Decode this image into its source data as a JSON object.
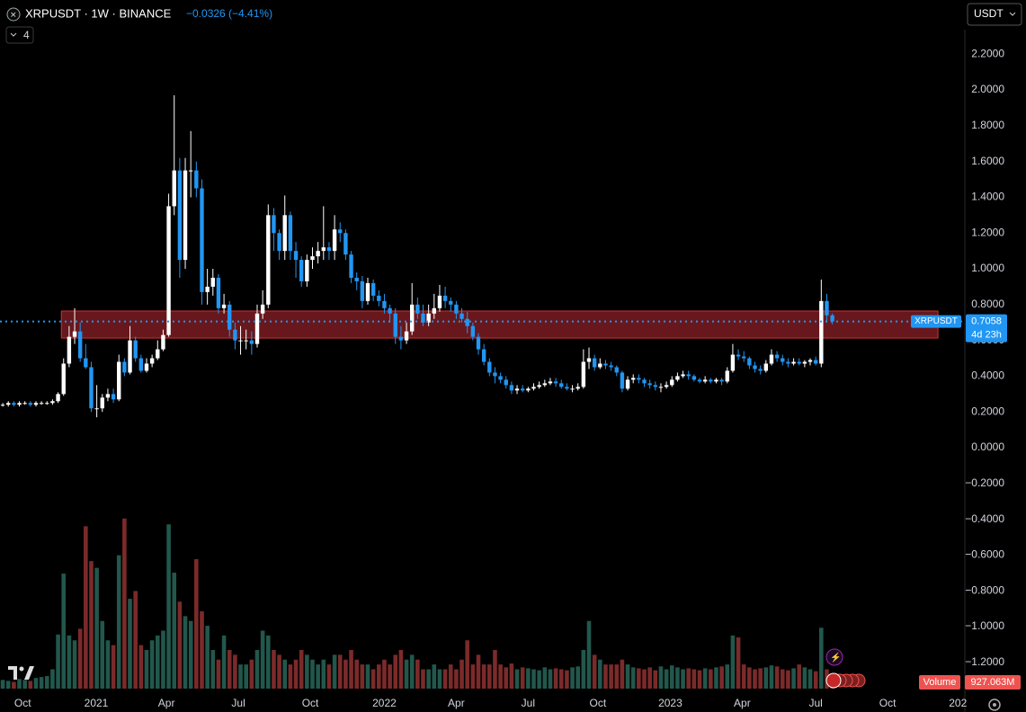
{
  "chart_data": {
    "type": "candlestick",
    "title": "XRPUSDT · 1W · BINANCE",
    "change_label": "−0.0326 (−4.41%)",
    "currency": "USDT",
    "indicator_count": 4,
    "open": [
      0.24,
      0.24,
      0.25,
      0.24,
      0.25,
      0.25,
      0.24,
      0.25,
      0.25,
      0.25,
      0.26,
      0.3,
      0.47,
      0.62,
      0.65,
      0.5,
      0.45,
      0.22,
      0.22,
      0.28,
      0.3,
      0.27,
      0.48,
      0.42,
      0.6,
      0.5,
      0.43,
      0.47,
      0.5,
      0.55,
      0.63,
      1.35,
      1.55,
      1.05,
      1.55,
      1.55,
      1.45,
      0.87,
      0.9,
      0.95,
      0.78,
      0.8,
      0.66,
      0.6,
      0.6,
      0.6,
      0.58,
      0.75,
      0.8,
      1.3,
      1.2,
      1.1,
      1.3,
      1.1,
      1.05,
      0.93,
      1.05,
      1.07,
      1.1,
      1.12,
      1.1,
      1.22,
      1.2,
      1.08,
      0.95,
      0.93,
      0.82,
      0.92,
      0.85,
      0.82,
      0.78,
      0.75,
      0.62,
      0.6,
      0.65,
      0.8,
      0.75,
      0.7,
      0.75,
      0.78,
      0.85,
      0.82,
      0.8,
      0.75,
      0.72,
      0.68,
      0.62,
      0.55,
      0.48,
      0.42,
      0.4,
      0.38,
      0.35,
      0.32,
      0.33,
      0.32,
      0.33,
      0.34,
      0.35,
      0.36,
      0.37,
      0.36,
      0.34,
      0.33,
      0.33,
      0.34,
      0.48,
      0.5,
      0.45,
      0.47,
      0.46,
      0.45,
      0.42,
      0.33,
      0.38,
      0.39,
      0.38,
      0.36,
      0.35,
      0.34,
      0.34,
      0.35,
      0.38,
      0.4,
      0.41,
      0.4,
      0.38,
      0.37,
      0.38,
      0.37,
      0.38,
      0.37,
      0.43,
      0.52,
      0.51,
      0.5,
      0.46,
      0.44,
      0.43,
      0.47,
      0.52,
      0.5,
      0.48,
      0.47,
      0.48,
      0.47,
      0.48,
      0.49,
      0.47,
      0.82,
      0.74
    ],
    "high": [
      0.25,
      0.26,
      0.26,
      0.26,
      0.26,
      0.26,
      0.26,
      0.26,
      0.26,
      0.27,
      0.31,
      0.5,
      0.68,
      0.78,
      0.7,
      0.58,
      0.48,
      0.35,
      0.3,
      0.33,
      0.33,
      0.52,
      0.5,
      0.68,
      0.62,
      0.52,
      0.5,
      0.52,
      0.6,
      0.66,
      1.42,
      1.97,
      1.62,
      1.62,
      1.77,
      1.6,
      1.5,
      1.0,
      1.0,
      0.97,
      0.86,
      0.82,
      0.7,
      0.68,
      0.66,
      0.65,
      0.8,
      0.88,
      1.36,
      1.34,
      1.22,
      1.41,
      1.32,
      1.15,
      1.07,
      1.08,
      1.12,
      1.15,
      1.35,
      1.15,
      1.3,
      1.26,
      1.22,
      1.1,
      0.98,
      0.96,
      0.95,
      0.94,
      0.88,
      0.86,
      0.8,
      0.78,
      0.68,
      0.7,
      0.92,
      0.84,
      0.8,
      0.8,
      0.86,
      0.91,
      0.9,
      0.84,
      0.82,
      0.78,
      0.76,
      0.7,
      0.64,
      0.58,
      0.5,
      0.45,
      0.42,
      0.4,
      0.37,
      0.35,
      0.35,
      0.34,
      0.36,
      0.37,
      0.38,
      0.39,
      0.39,
      0.38,
      0.36,
      0.35,
      0.36,
      0.55,
      0.56,
      0.52,
      0.5,
      0.49,
      0.48,
      0.46,
      0.43,
      0.4,
      0.41,
      0.41,
      0.39,
      0.38,
      0.37,
      0.36,
      0.37,
      0.4,
      0.42,
      0.43,
      0.43,
      0.41,
      0.39,
      0.4,
      0.39,
      0.39,
      0.39,
      0.45,
      0.58,
      0.55,
      0.54,
      0.51,
      0.48,
      0.46,
      0.49,
      0.55,
      0.54,
      0.52,
      0.5,
      0.5,
      0.5,
      0.49,
      0.5,
      0.51,
      0.94,
      0.86,
      0.75
    ],
    "low": [
      0.23,
      0.23,
      0.23,
      0.23,
      0.24,
      0.23,
      0.23,
      0.24,
      0.24,
      0.24,
      0.25,
      0.29,
      0.45,
      0.58,
      0.48,
      0.44,
      0.2,
      0.17,
      0.2,
      0.26,
      0.25,
      0.26,
      0.4,
      0.41,
      0.48,
      0.42,
      0.42,
      0.45,
      0.49,
      0.54,
      0.62,
      1.3,
      0.95,
      1.0,
      1.4,
      1.4,
      0.8,
      0.8,
      0.85,
      0.75,
      0.75,
      0.62,
      0.55,
      0.52,
      0.55,
      0.52,
      0.56,
      0.72,
      0.78,
      1.1,
      1.05,
      1.05,
      1.05,
      0.95,
      0.9,
      0.9,
      1.0,
      1.03,
      1.05,
      1.05,
      1.05,
      1.15,
      1.05,
      0.92,
      0.88,
      0.78,
      0.8,
      0.82,
      0.79,
      0.75,
      0.7,
      0.58,
      0.55,
      0.58,
      0.63,
      0.72,
      0.68,
      0.68,
      0.72,
      0.76,
      0.78,
      0.76,
      0.72,
      0.7,
      0.64,
      0.6,
      0.52,
      0.46,
      0.4,
      0.36,
      0.36,
      0.33,
      0.3,
      0.3,
      0.31,
      0.31,
      0.32,
      0.33,
      0.34,
      0.35,
      0.34,
      0.33,
      0.32,
      0.31,
      0.32,
      0.33,
      0.44,
      0.43,
      0.44,
      0.44,
      0.43,
      0.4,
      0.31,
      0.32,
      0.36,
      0.36,
      0.34,
      0.33,
      0.32,
      0.31,
      0.33,
      0.34,
      0.37,
      0.39,
      0.38,
      0.37,
      0.36,
      0.36,
      0.36,
      0.36,
      0.35,
      0.36,
      0.42,
      0.49,
      0.48,
      0.44,
      0.42,
      0.41,
      0.42,
      0.46,
      0.48,
      0.46,
      0.45,
      0.46,
      0.46,
      0.45,
      0.46,
      0.46,
      0.45,
      0.7,
      0.69
    ],
    "close": [
      0.24,
      0.25,
      0.24,
      0.25,
      0.25,
      0.24,
      0.25,
      0.25,
      0.25,
      0.26,
      0.3,
      0.47,
      0.62,
      0.65,
      0.5,
      0.45,
      0.22,
      0.22,
      0.28,
      0.3,
      0.27,
      0.48,
      0.42,
      0.6,
      0.5,
      0.43,
      0.47,
      0.5,
      0.55,
      0.63,
      1.35,
      1.55,
      1.05,
      1.55,
      1.55,
      1.45,
      0.87,
      0.9,
      0.95,
      0.78,
      0.8,
      0.66,
      0.6,
      0.6,
      0.6,
      0.58,
      0.75,
      0.8,
      1.3,
      1.2,
      1.1,
      1.3,
      1.1,
      1.05,
      0.93,
      1.05,
      1.07,
      1.1,
      1.12,
      1.1,
      1.22,
      1.2,
      1.08,
      0.95,
      0.93,
      0.82,
      0.92,
      0.85,
      0.82,
      0.78,
      0.75,
      0.62,
      0.6,
      0.65,
      0.8,
      0.75,
      0.7,
      0.75,
      0.78,
      0.85,
      0.82,
      0.8,
      0.75,
      0.72,
      0.68,
      0.62,
      0.55,
      0.48,
      0.42,
      0.4,
      0.38,
      0.35,
      0.32,
      0.33,
      0.32,
      0.33,
      0.34,
      0.35,
      0.36,
      0.37,
      0.36,
      0.34,
      0.33,
      0.33,
      0.34,
      0.48,
      0.5,
      0.45,
      0.47,
      0.46,
      0.45,
      0.42,
      0.33,
      0.38,
      0.39,
      0.38,
      0.36,
      0.35,
      0.34,
      0.34,
      0.35,
      0.38,
      0.4,
      0.41,
      0.4,
      0.38,
      0.37,
      0.38,
      0.37,
      0.38,
      0.37,
      0.43,
      0.52,
      0.51,
      0.5,
      0.46,
      0.44,
      0.43,
      0.47,
      0.52,
      0.5,
      0.48,
      0.47,
      0.48,
      0.47,
      0.48,
      0.49,
      0.47,
      0.82,
      0.74,
      0.7058
    ],
    "volume": [
      900,
      800,
      700,
      1000,
      900,
      800,
      1100,
      1200,
      1300,
      2000,
      5600,
      11900,
      5500,
      5000,
      6200,
      16800,
      13200,
      12500,
      7000,
      5000,
      4500,
      13800,
      17600,
      9300,
      10100,
      4500,
      4000,
      5000,
      5500,
      6000,
      17000,
      12000,
      9000,
      7500,
      7000,
      13400,
      8000,
      6500,
      4000,
      3000,
      5500,
      4000,
      3500,
      2500,
      2500,
      3000,
      4000,
      6000,
      5500,
      4000,
      3500,
      3000,
      2500,
      3000,
      4000,
      3500,
      3000,
      2500,
      3000,
      2500,
      3500,
      3500,
      3000,
      4000,
      3000,
      2500,
      2500,
      2000,
      2500,
      3000,
      2500,
      3500,
      4000,
      3000,
      3500,
      3000,
      2000,
      2000,
      2500,
      2000,
      2000,
      2500,
      2000,
      3000,
      5000,
      2500,
      3500,
      2500,
      2500,
      4000,
      2500,
      2200,
      2600,
      2000,
      2200,
      2100,
      2000,
      1900,
      2200,
      2000,
      2100,
      2000,
      1900,
      2200,
      2300,
      4000,
      7000,
      3500,
      3000,
      2500,
      2500,
      2500,
      3000,
      2500,
      2200,
      2100,
      2000,
      2200,
      1900,
      2300,
      2000,
      2400,
      2200,
      2000,
      2100,
      2000,
      1900,
      2100,
      2000,
      2200,
      2300,
      2500,
      5500,
      5300,
      2500,
      2200,
      2000,
      2100,
      2200,
      2400,
      2300,
      2000,
      1900,
      2100,
      2500,
      2200,
      2000,
      1800,
      6300,
      2000,
      927.063
    ],
    "volume_lim": [
      0,
      20000
    ],
    "up_color": "#ffffff",
    "down_color": "#2196f3",
    "volume_up_color": "#22574c",
    "volume_down_color": "#7b2a2a",
    "xlim": [
      -0.5,
      173.8
    ],
    "xticks": [
      {
        "value": 3.6,
        "label": "Oct"
      },
      {
        "value": 16.9,
        "label": "2021"
      },
      {
        "value": 29.6,
        "label": "Apr"
      },
      {
        "value": 42.6,
        "label": "Jul"
      },
      {
        "value": 55.6,
        "label": "Oct"
      },
      {
        "value": 69.0,
        "label": "2022"
      },
      {
        "value": 82.0,
        "label": "Apr"
      },
      {
        "value": 95.0,
        "label": "Jul"
      },
      {
        "value": 107.6,
        "label": "Oct"
      },
      {
        "value": 120.7,
        "label": "2023"
      },
      {
        "value": 133.7,
        "label": "Apr"
      },
      {
        "value": 147.0,
        "label": "Jul"
      },
      {
        "value": 160.0,
        "label": "Oct"
      },
      {
        "value": 172.7,
        "label": "202"
      }
    ],
    "ylim": [
      -1.367,
      2.337
    ],
    "yticks": [
      {
        "value": 2.2,
        "label": "2.2000"
      },
      {
        "value": 2.0,
        "label": "2.0000"
      },
      {
        "value": 1.8,
        "label": "1.8000"
      },
      {
        "value": 1.6,
        "label": "1.6000"
      },
      {
        "value": 1.4,
        "label": "1.4000"
      },
      {
        "value": 1.2,
        "label": "1.2000"
      },
      {
        "value": 1.0,
        "label": "1.0000"
      },
      {
        "value": 0.8,
        "label": "0.8000"
      },
      {
        "value": 0.6,
        "label": "0.6000"
      },
      {
        "value": 0.4,
        "label": "0.4000"
      },
      {
        "value": 0.2,
        "label": "0.2000"
      },
      {
        "value": 0,
        "label": "0.0000"
      },
      {
        "value": -0.2,
        "label": "−0.2000"
      },
      {
        "value": -0.4,
        "label": "−0.4000"
      },
      {
        "value": -0.6,
        "label": "−0.6000"
      },
      {
        "value": -0.8,
        "label": "−0.8000"
      },
      {
        "value": -1.0,
        "label": "−1.0000"
      },
      {
        "value": -1.2,
        "label": "−1.2000"
      }
    ],
    "grid": false,
    "zone": {
      "from_index": 10.6,
      "to_index": 169.1,
      "low": 0.613,
      "high": 0.764,
      "color": "#7a1c22",
      "border_color": "#d32f2f"
    },
    "last_price": 0.7058,
    "price_line_color": "#2196f3",
    "price_badge": {
      "symbol": "XRPUSDT",
      "countdown": "4d 23h"
    },
    "volume_label": "Volume",
    "last_volume_label": "927.063M",
    "volume_badge_color": "#ef5350"
  }
}
